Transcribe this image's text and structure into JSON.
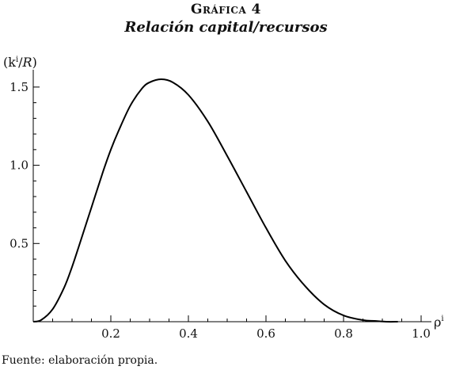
{
  "header": {
    "title": "Gráfica 4",
    "subtitle": "Relación capital/recursos"
  },
  "footer": {
    "source": "Fuente: elaboración propia."
  },
  "chart_data": {
    "type": "line",
    "ylabel": "(ki/R)",
    "xlabel": "ρi",
    "xlim": [
      0,
      1.0
    ],
    "ylim": [
      0,
      1.55
    ],
    "x_ticks": [
      "0.2",
      "0.4",
      "0.6",
      "0.8",
      "1.0"
    ],
    "y_ticks": [
      "0.5",
      "1.0",
      "1.5"
    ],
    "grid": false,
    "legend": "none",
    "line_color": "#000000",
    "series": [
      {
        "x": [
          0.0,
          0.02,
          0.05,
          0.08,
          0.1,
          0.12,
          0.15,
          0.18,
          0.2,
          0.22,
          0.25,
          0.28,
          0.3,
          0.33,
          0.36,
          0.4,
          0.45,
          0.5,
          0.55,
          0.6,
          0.65,
          0.7,
          0.75,
          0.8,
          0.85,
          0.88,
          0.91,
          0.94
        ],
        "y": [
          0.0,
          0.01,
          0.08,
          0.22,
          0.35,
          0.5,
          0.73,
          0.96,
          1.1,
          1.22,
          1.38,
          1.49,
          1.53,
          1.55,
          1.53,
          1.45,
          1.28,
          1.06,
          0.83,
          0.6,
          0.39,
          0.23,
          0.11,
          0.04,
          0.01,
          0.005,
          0.0,
          0.0
        ]
      }
    ]
  }
}
